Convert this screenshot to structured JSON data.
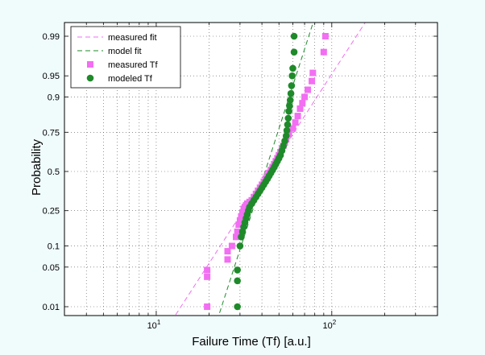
{
  "chart_data": {
    "type": "scatter",
    "title": "",
    "xlabel": "Failure Time (Tf)  [a.u.]",
    "ylabel": "Probability",
    "x_scale": "log",
    "xlim": [
      3,
      400
    ],
    "x_ticks": [
      {
        "value": 10,
        "label": "10",
        "exp": "1"
      },
      {
        "value": 100,
        "label": "10",
        "exp": "2"
      }
    ],
    "y_scale": "normal-probability",
    "y_ticks": [
      {
        "p": 0.01,
        "label": "0.01"
      },
      {
        "p": 0.05,
        "label": "0.05"
      },
      {
        "p": 0.1,
        "label": "0.1"
      },
      {
        "p": 0.25,
        "label": "0.25"
      },
      {
        "p": 0.5,
        "label": "0.5"
      },
      {
        "p": 0.75,
        "label": "0.75"
      },
      {
        "p": 0.9,
        "label": "0.9"
      },
      {
        "p": 0.95,
        "label": "0.95"
      },
      {
        "p": 0.99,
        "label": "0.99"
      }
    ],
    "grid": true,
    "legend_position": "top-left",
    "series": [
      {
        "name": "measured fit",
        "kind": "line",
        "color": "#f26ef2",
        "dash": "dashed",
        "points": [
          [
            11.5,
            0.0035
          ],
          [
            170,
            0.997
          ]
        ]
      },
      {
        "name": "model fit",
        "kind": "line",
        "color": "#1f8a2a",
        "dash": "dashed",
        "points": [
          [
            21.5,
            0.0035
          ],
          [
            82,
            0.997
          ]
        ]
      },
      {
        "name": "measured Tf",
        "kind": "scatter",
        "marker": "square",
        "color": "#f26ef2",
        "points": [
          [
            19.5,
            0.01
          ],
          [
            19.5,
            0.035
          ],
          [
            19.5,
            0.045
          ],
          [
            25.5,
            0.065
          ],
          [
            25.5,
            0.085
          ],
          [
            27,
            0.1
          ],
          [
            28.5,
            0.13
          ],
          [
            29,
            0.15
          ],
          [
            29.5,
            0.18
          ],
          [
            30,
            0.2
          ],
          [
            30.5,
            0.22
          ],
          [
            31,
            0.24
          ],
          [
            31.5,
            0.26
          ],
          [
            32,
            0.27
          ],
          [
            32.5,
            0.28
          ],
          [
            33,
            0.29
          ],
          [
            34,
            0.3
          ],
          [
            35,
            0.31
          ],
          [
            36,
            0.33
          ],
          [
            37,
            0.35
          ],
          [
            38,
            0.37
          ],
          [
            39,
            0.39
          ],
          [
            40,
            0.41
          ],
          [
            41,
            0.43
          ],
          [
            42,
            0.45
          ],
          [
            43,
            0.47
          ],
          [
            44,
            0.49
          ],
          [
            45,
            0.51
          ],
          [
            46,
            0.53
          ],
          [
            47,
            0.55
          ],
          [
            48,
            0.57
          ],
          [
            49,
            0.59
          ],
          [
            50,
            0.61
          ],
          [
            51,
            0.63
          ],
          [
            52,
            0.65
          ],
          [
            53,
            0.67
          ],
          [
            54,
            0.69
          ],
          [
            55,
            0.71
          ],
          [
            57,
            0.74
          ],
          [
            60,
            0.77
          ],
          [
            62,
            0.8
          ],
          [
            64,
            0.83
          ],
          [
            66,
            0.86
          ],
          [
            68,
            0.88
          ],
          [
            70,
            0.9
          ],
          [
            73,
            0.92
          ],
          [
            77,
            0.94
          ],
          [
            78,
            0.955
          ],
          [
            90,
            0.98
          ],
          [
            92,
            0.99
          ]
        ]
      },
      {
        "name": "modeled Tf",
        "kind": "scatter",
        "marker": "circle",
        "color": "#1f8a2a",
        "points": [
          [
            29,
            0.01
          ],
          [
            29,
            0.03
          ],
          [
            29,
            0.045
          ],
          [
            30,
            0.1
          ],
          [
            30.5,
            0.13
          ],
          [
            31,
            0.15
          ],
          [
            31.5,
            0.17
          ],
          [
            32,
            0.19
          ],
          [
            32.5,
            0.21
          ],
          [
            33,
            0.23
          ],
          [
            33.5,
            0.25
          ],
          [
            34,
            0.27
          ],
          [
            35,
            0.29
          ],
          [
            36,
            0.31
          ],
          [
            37,
            0.33
          ],
          [
            38,
            0.35
          ],
          [
            39,
            0.37
          ],
          [
            40,
            0.39
          ],
          [
            41,
            0.41
          ],
          [
            42,
            0.43
          ],
          [
            43,
            0.45
          ],
          [
            44,
            0.47
          ],
          [
            45,
            0.49
          ],
          [
            46,
            0.51
          ],
          [
            47,
            0.53
          ],
          [
            48,
            0.55
          ],
          [
            49,
            0.57
          ],
          [
            50,
            0.59
          ],
          [
            51,
            0.61
          ],
          [
            52,
            0.64
          ],
          [
            53,
            0.67
          ],
          [
            54,
            0.7
          ],
          [
            55,
            0.73
          ],
          [
            55.5,
            0.76
          ],
          [
            56,
            0.79
          ],
          [
            56.5,
            0.82
          ],
          [
            57,
            0.85
          ],
          [
            57.5,
            0.87
          ],
          [
            58,
            0.89
          ],
          [
            58.5,
            0.91
          ],
          [
            59,
            0.93
          ],
          [
            59.5,
            0.95
          ],
          [
            60,
            0.962
          ],
          [
            61,
            0.98
          ],
          [
            61,
            0.99
          ]
        ]
      }
    ]
  }
}
